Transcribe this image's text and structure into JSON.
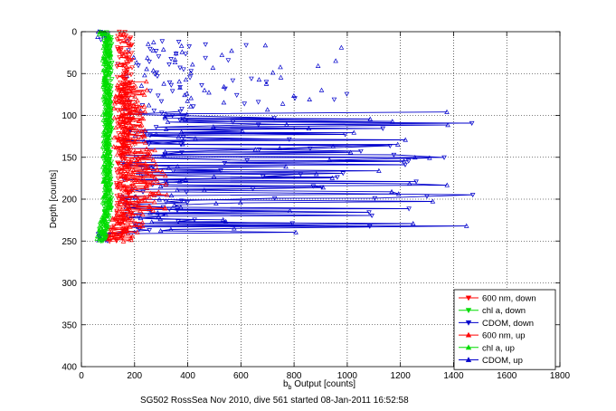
{
  "chart_data": {
    "type": "scatter",
    "xlabel_main": "b",
    "xlabel_sub": "b",
    "xlabel_rest": " Output [counts]",
    "ylabel": "Depth [counts]",
    "xlim": [
      0,
      1800
    ],
    "ylim": [
      0,
      400
    ],
    "y_reversed": true,
    "grid": true,
    "xticks": [
      0,
      200,
      400,
      600,
      800,
      1000,
      1200,
      1400,
      1600,
      1800
    ],
    "yticks": [
      0,
      50,
      100,
      150,
      200,
      250,
      300,
      350,
      400
    ],
    "legend_position": "bottom-right",
    "series": [
      {
        "name": "600 nm, down",
        "color": "#ff0000",
        "marker": "triangle-down",
        "x_center": 150,
        "x_spread": 60,
        "depth_range": [
          0,
          250
        ],
        "approx_count": 220
      },
      {
        "name": "chl a, down",
        "color": "#00dd00",
        "marker": "triangle-down",
        "x_center": 100,
        "x_spread": 15,
        "depth_range": [
          0,
          250
        ],
        "approx_count": 220
      },
      {
        "name": "CDOM, down",
        "color": "#0000cc",
        "marker": "triangle-down",
        "x_center": 400,
        "x_spread": 1400,
        "depth_range": [
          0,
          250
        ],
        "approx_count": 140
      },
      {
        "name": "600 nm, up",
        "color": "#ff0000",
        "marker": "triangle-up",
        "x_center": 160,
        "x_spread": 130,
        "depth_range": [
          60,
          250
        ],
        "approx_count": 220
      },
      {
        "name": "chl a, up",
        "color": "#00dd00",
        "marker": "triangle-up",
        "x_center": 95,
        "x_spread": 15,
        "depth_range": [
          0,
          250
        ],
        "approx_count": 220
      },
      {
        "name": "CDOM, up",
        "color": "#0000cc",
        "marker": "triangle-up",
        "x_center": 400,
        "x_spread": 1400,
        "depth_range": [
          0,
          250
        ],
        "approx_count": 160
      }
    ]
  },
  "caption": "SG502 RossSea Nov 2010, dive 561 started 08-Jan-2011 16:52:58"
}
